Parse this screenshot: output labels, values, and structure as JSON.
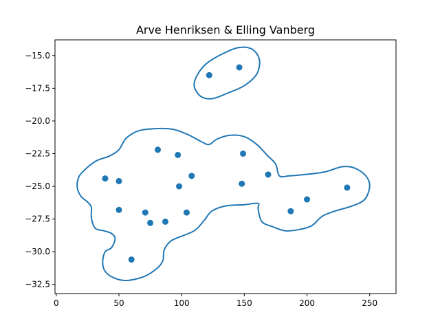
{
  "chart_data": {
    "type": "scatter",
    "title": "Arve Henriksen & Elling Vanberg",
    "xlabel": "",
    "ylabel": "",
    "xlim": [
      -1,
      271
    ],
    "ylim": [
      -33.2,
      -13.8
    ],
    "xticks": [
      0,
      50,
      100,
      150,
      200,
      250
    ],
    "yticks": [
      -32.5,
      -30.0,
      -27.5,
      -25.0,
      -22.5,
      -20.0,
      -17.5,
      -15.0
    ],
    "xtick_labels": [
      "0",
      "50",
      "100",
      "150",
      "200",
      "250"
    ],
    "ytick_labels": [
      "−32.5",
      "−30.0",
      "−27.5",
      "−25.0",
      "−22.5",
      "−20.0",
      "−17.5",
      "−15.0"
    ],
    "grid": false,
    "color": "#1f77b4",
    "points": [
      {
        "x": 122,
        "y": -16.5
      },
      {
        "x": 146,
        "y": -15.9
      },
      {
        "x": 81,
        "y": -22.2
      },
      {
        "x": 97,
        "y": -22.6
      },
      {
        "x": 149,
        "y": -22.5
      },
      {
        "x": 39,
        "y": -24.4
      },
      {
        "x": 50,
        "y": -24.6
      },
      {
        "x": 98,
        "y": -25.0
      },
      {
        "x": 108,
        "y": -24.2
      },
      {
        "x": 148,
        "y": -24.8
      },
      {
        "x": 169,
        "y": -24.1
      },
      {
        "x": 232,
        "y": -25.1
      },
      {
        "x": 200,
        "y": -26.0
      },
      {
        "x": 50,
        "y": -26.8
      },
      {
        "x": 71,
        "y": -27.0
      },
      {
        "x": 75,
        "y": -27.8
      },
      {
        "x": 87,
        "y": -27.7
      },
      {
        "x": 104,
        "y": -27.0
      },
      {
        "x": 187,
        "y": -26.9
      },
      {
        "x": 60,
        "y": -30.6
      }
    ],
    "contours": [
      [
        [
          110,
          -17.3
        ],
        [
          113,
          -16.4
        ],
        [
          120,
          -15.6
        ],
        [
          132,
          -14.9
        ],
        [
          145,
          -14.4
        ],
        [
          156,
          -14.5
        ],
        [
          162,
          -15.3
        ],
        [
          160,
          -16.4
        ],
        [
          150,
          -17.3
        ],
        [
          136,
          -17.9
        ],
        [
          124,
          -18.3
        ],
        [
          115,
          -18.1
        ],
        [
          110,
          -17.3
        ]
      ],
      [
        [
          20,
          -24.0
        ],
        [
          31,
          -23.1
        ],
        [
          42,
          -22.7
        ],
        [
          50,
          -22.2
        ],
        [
          56,
          -21.3
        ],
        [
          68,
          -20.7
        ],
        [
          90,
          -20.6
        ],
        [
          104,
          -21.0
        ],
        [
          116,
          -21.6
        ],
        [
          122,
          -21.8
        ],
        [
          128,
          -21.4
        ],
        [
          138,
          -21.1
        ],
        [
          150,
          -21.2
        ],
        [
          160,
          -21.8
        ],
        [
          168,
          -22.6
        ],
        [
          175,
          -23.3
        ],
        [
          178,
          -24.2
        ],
        [
          186,
          -24.2
        ],
        [
          198,
          -24.1
        ],
        [
          214,
          -23.9
        ],
        [
          228,
          -23.5
        ],
        [
          238,
          -23.6
        ],
        [
          247,
          -24.2
        ],
        [
          250,
          -25.0
        ],
        [
          246,
          -26.0
        ],
        [
          236,
          -26.5
        ],
        [
          222,
          -26.9
        ],
        [
          212,
          -27.3
        ],
        [
          204,
          -28.0
        ],
        [
          194,
          -28.3
        ],
        [
          183,
          -28.4
        ],
        [
          173,
          -28.1
        ],
        [
          164,
          -27.7
        ],
        [
          161,
          -26.7
        ],
        [
          161,
          -26.3
        ],
        [
          150,
          -26.4
        ],
        [
          135,
          -26.5
        ],
        [
          124,
          -26.9
        ],
        [
          118,
          -27.6
        ],
        [
          110,
          -28.4
        ],
        [
          95,
          -29.0
        ],
        [
          90,
          -29.3
        ],
        [
          86,
          -29.9
        ],
        [
          85,
          -30.7
        ],
        [
          80,
          -31.3
        ],
        [
          70,
          -31.9
        ],
        [
          56,
          -32.2
        ],
        [
          46,
          -32.0
        ],
        [
          39,
          -31.5
        ],
        [
          37,
          -30.8
        ],
        [
          39,
          -30.0
        ],
        [
          44,
          -29.7
        ],
        [
          47,
          -29.0
        ],
        [
          44,
          -28.6
        ],
        [
          38,
          -28.4
        ],
        [
          31,
          -28.2
        ],
        [
          28,
          -27.4
        ],
        [
          28,
          -26.6
        ],
        [
          25,
          -26.2
        ],
        [
          20,
          -25.8
        ],
        [
          17,
          -25.2
        ],
        [
          17,
          -24.6
        ],
        [
          20,
          -24.0
        ]
      ]
    ]
  }
}
